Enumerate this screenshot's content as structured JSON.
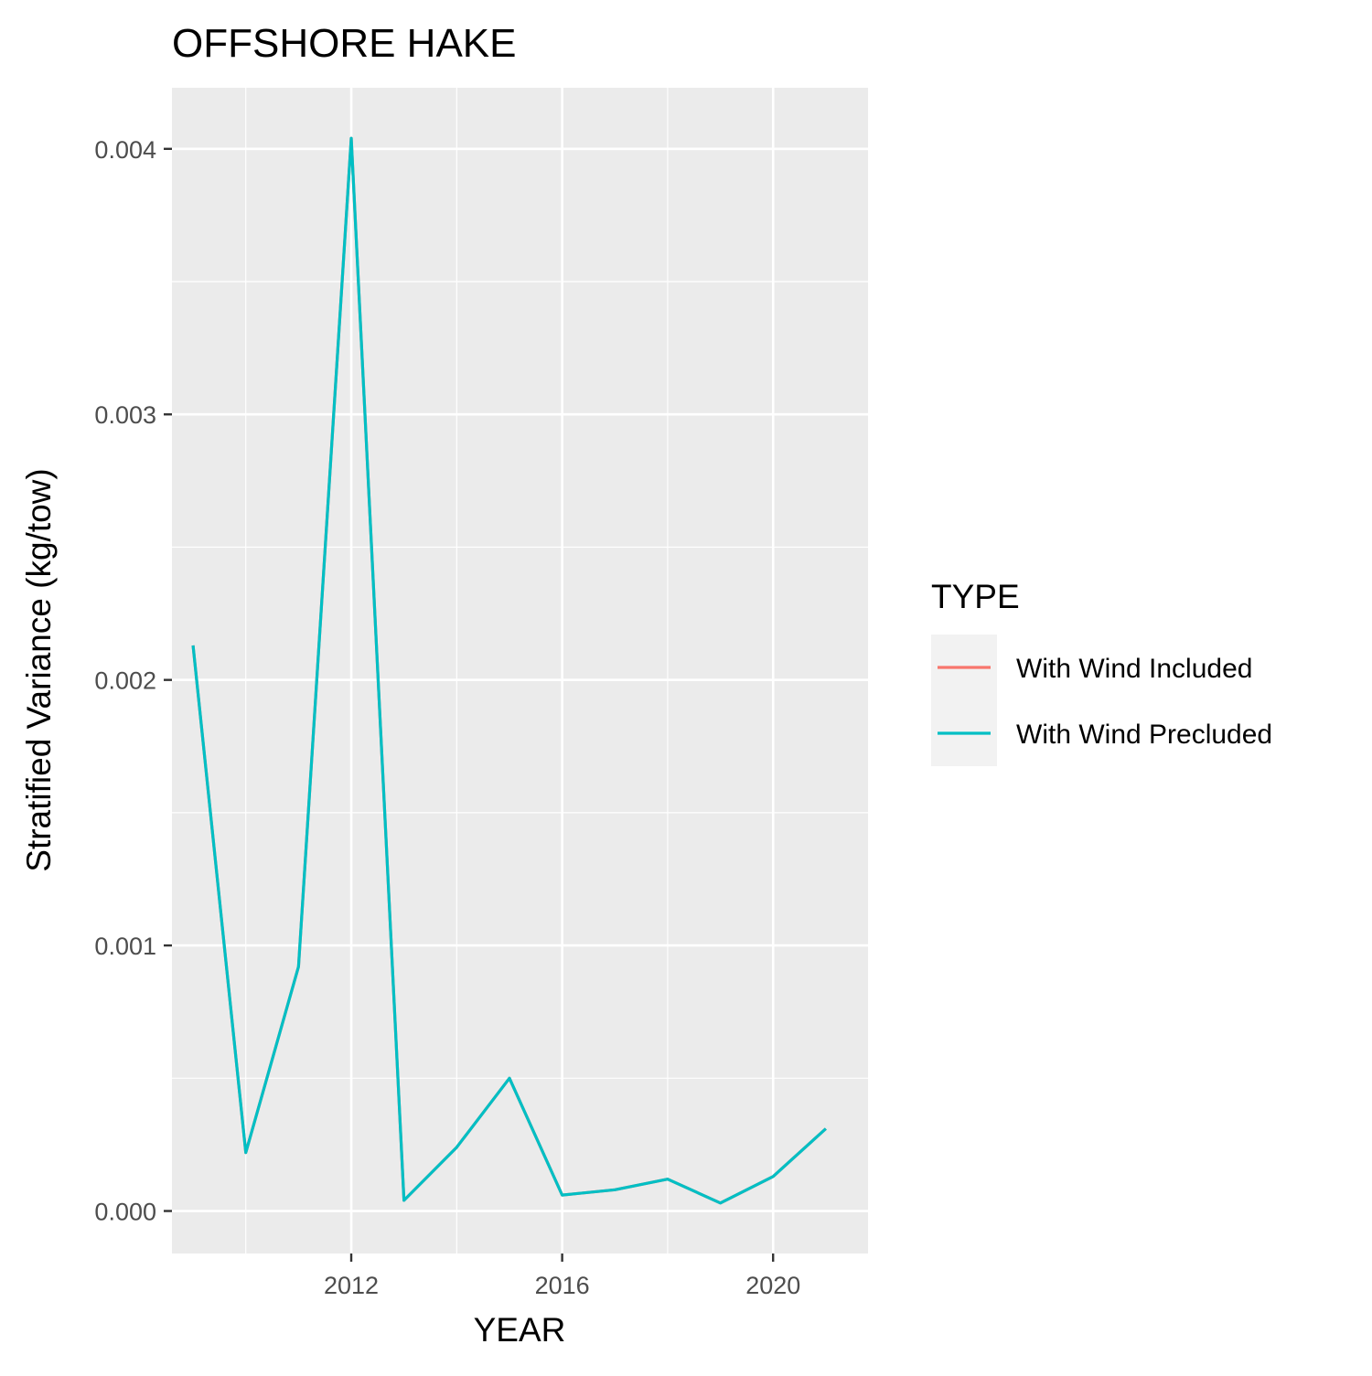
{
  "chart_data": {
    "type": "line",
    "title": "OFFSHORE HAKE",
    "xlabel": "YEAR",
    "ylabel": "Stratified Variance (kg/tow)",
    "xlim": [
      2008.6,
      2021.8
    ],
    "ylim": [
      -0.00016,
      0.00423
    ],
    "x_ticks": [
      2012,
      2016,
      2020
    ],
    "y_ticks": [
      0.0,
      0.001,
      0.002,
      0.003,
      0.004
    ],
    "x_tick_labels": [
      "2012",
      "2016",
      "2020"
    ],
    "y_tick_labels": [
      "0.000",
      "0.001",
      "0.002",
      "0.003",
      "0.004"
    ],
    "grid": true,
    "legend": {
      "title": "TYPE",
      "position": "right",
      "entries": [
        {
          "label": "With Wind Included",
          "color": "#F8766D"
        },
        {
          "label": "With Wind Precluded",
          "color": "#00BFC4"
        }
      ]
    },
    "x": [
      2009,
      2010,
      2011,
      2012,
      2013,
      2014,
      2015,
      2016,
      2017,
      2018,
      2019,
      2020,
      2021
    ],
    "series": [
      {
        "name": "With Wind Included",
        "color": "#F8766D",
        "values": [
          0.00213,
          0.00022,
          0.00092,
          0.00404,
          4e-05,
          0.00024,
          0.0005,
          6e-05,
          8e-05,
          0.00012,
          3e-05,
          0.00013,
          0.00031
        ]
      },
      {
        "name": "With Wind Precluded",
        "color": "#00BFC4",
        "values": [
          0.00213,
          0.00022,
          0.00092,
          0.00404,
          4e-05,
          0.00024,
          0.0005,
          6e-05,
          8e-05,
          0.00012,
          3e-05,
          0.00013,
          0.00031
        ]
      }
    ]
  }
}
